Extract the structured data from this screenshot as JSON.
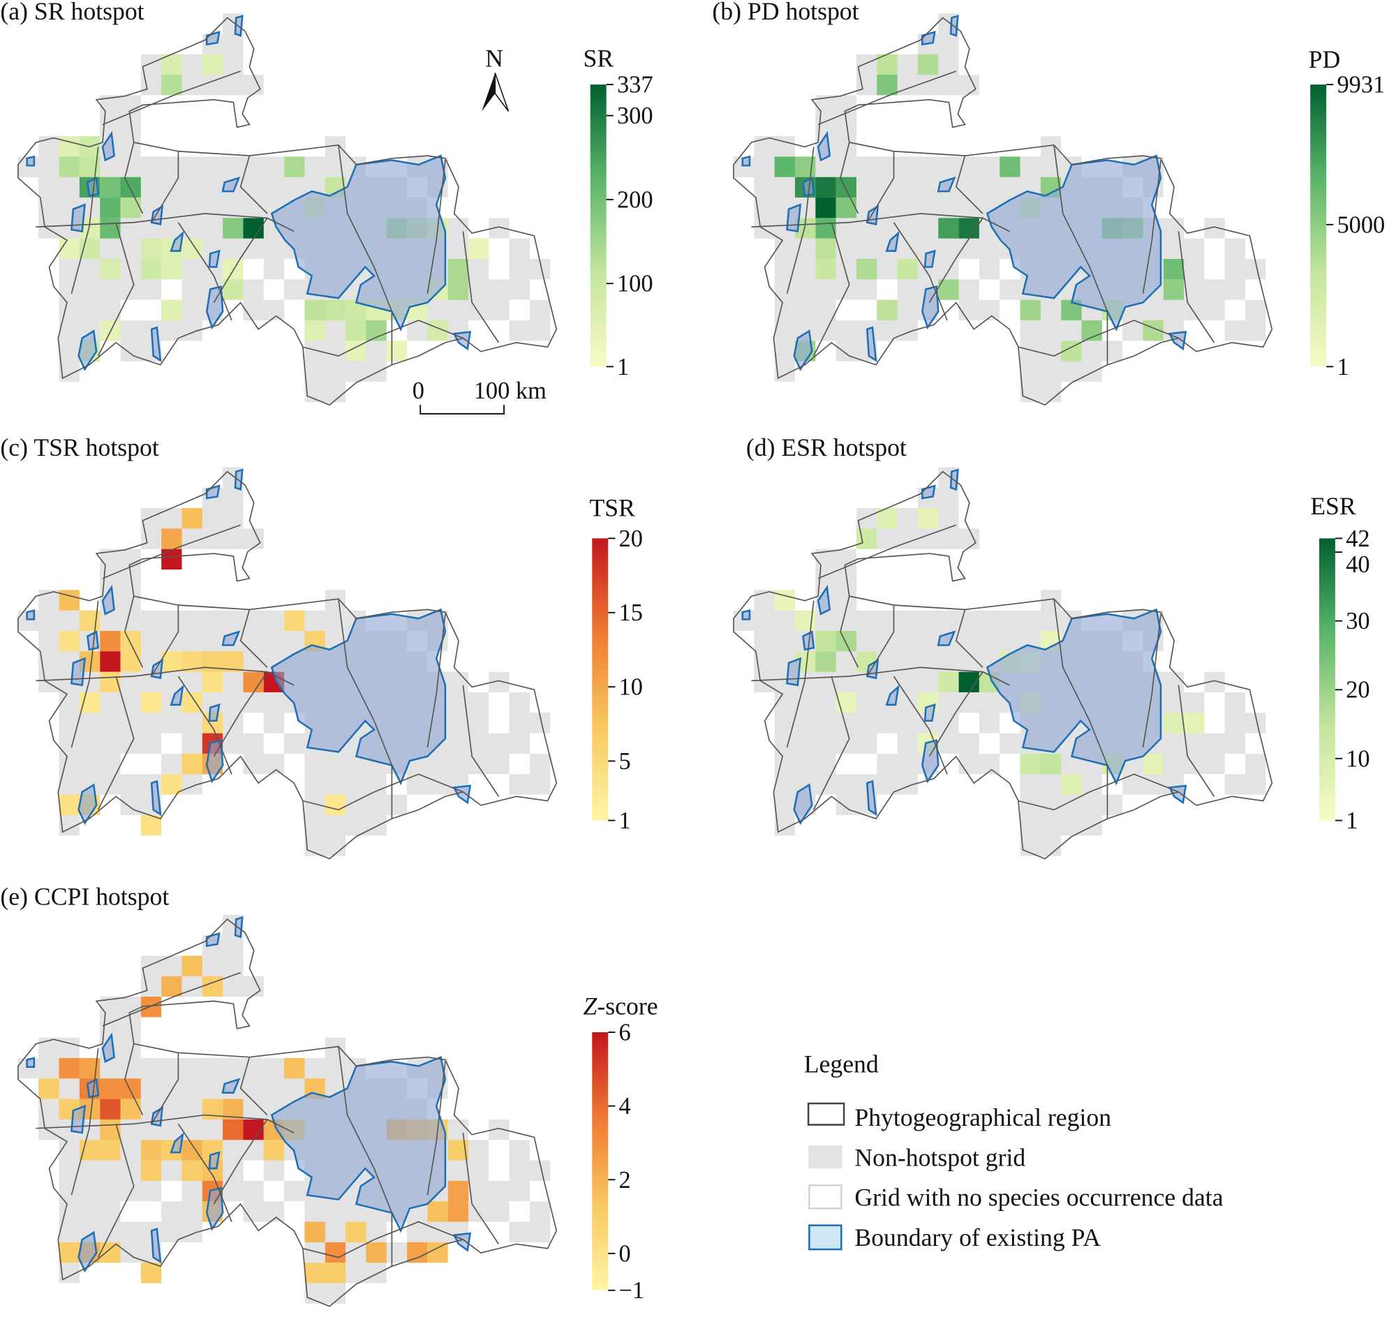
{
  "colors": {
    "nonhotspot": "#e3e3e3",
    "nodata": "#ffffff",
    "pa_fill": "#8fa6d4",
    "pa_stroke": "#1f6fb5",
    "region_stroke": "#555555",
    "green_ramp": [
      "#f7fbc6",
      "#c5e59e",
      "#5bb56a",
      "#00602f"
    ],
    "red_ramp": [
      "#fff5a5",
      "#f8c860",
      "#ef7a32",
      "#c3161e"
    ]
  },
  "panels": [
    {
      "id": "a",
      "title": "(a) SR hotspot",
      "cb_title": "SR",
      "ramp": "green",
      "range": [
        1,
        337
      ],
      "ticks": [
        "337",
        "300",
        "200",
        "100",
        "1"
      ],
      "cells": [
        [
          7,
          2,
          70
        ],
        [
          9,
          2,
          60
        ],
        [
          7,
          3,
          130
        ],
        [
          2,
          6,
          60
        ],
        [
          3,
          6,
          90
        ],
        [
          2,
          7,
          130
        ],
        [
          3,
          7,
          110
        ],
        [
          3,
          8,
          250
        ],
        [
          4,
          8,
          200
        ],
        [
          5,
          8,
          240
        ],
        [
          4,
          9,
          220
        ],
        [
          5,
          9,
          130
        ],
        [
          4,
          10,
          210
        ],
        [
          3,
          10,
          60
        ],
        [
          2,
          11,
          40
        ],
        [
          3,
          11,
          90
        ],
        [
          6,
          11,
          70
        ],
        [
          7,
          11,
          60
        ],
        [
          8,
          11,
          50
        ],
        [
          4,
          12,
          70
        ],
        [
          6,
          12,
          90
        ],
        [
          7,
          12,
          60
        ],
        [
          10,
          10,
          180
        ],
        [
          11,
          10,
          337
        ],
        [
          13,
          7,
          140
        ],
        [
          15,
          8,
          110
        ],
        [
          14,
          9,
          80
        ],
        [
          10,
          12,
          40
        ],
        [
          18,
          10,
          150
        ],
        [
          19,
          10,
          120
        ],
        [
          20,
          10,
          60
        ],
        [
          22,
          11,
          30
        ],
        [
          21,
          12,
          140
        ],
        [
          21,
          13,
          140
        ],
        [
          20,
          13,
          60
        ],
        [
          14,
          14,
          120
        ],
        [
          15,
          14,
          110
        ],
        [
          16,
          14,
          90
        ],
        [
          17,
          14,
          60
        ],
        [
          18,
          14,
          50
        ],
        [
          19,
          14,
          40
        ],
        [
          14,
          15,
          60
        ],
        [
          16,
          15,
          100
        ],
        [
          17,
          15,
          150
        ],
        [
          20,
          15,
          80
        ],
        [
          16,
          16,
          40
        ],
        [
          10,
          13,
          90
        ],
        [
          3,
          16,
          80
        ],
        [
          7,
          14,
          60
        ],
        [
          4,
          15,
          40
        ],
        [
          18,
          16,
          30
        ]
      ]
    },
    {
      "id": "b",
      "title": "(b) PD hotspot",
      "cb_title": "PD",
      "ramp": "green",
      "range": [
        1,
        9931
      ],
      "ticks": [
        "9931",
        "5000",
        "1"
      ],
      "cells": [
        [
          7,
          2,
          3500
        ],
        [
          9,
          2,
          4000
        ],
        [
          7,
          3,
          5500
        ],
        [
          2,
          7,
          6500
        ],
        [
          3,
          7,
          5000
        ],
        [
          3,
          8,
          8000
        ],
        [
          4,
          8,
          9000
        ],
        [
          5,
          8,
          7500
        ],
        [
          4,
          9,
          9931
        ],
        [
          5,
          9,
          5500
        ],
        [
          4,
          10,
          6500
        ],
        [
          3,
          10,
          3500
        ],
        [
          10,
          10,
          7500
        ],
        [
          11,
          10,
          9000
        ],
        [
          13,
          7,
          6000
        ],
        [
          15,
          8,
          5000
        ],
        [
          14,
          9,
          3000
        ],
        [
          4,
          11,
          3500
        ],
        [
          4,
          12,
          3000
        ],
        [
          6,
          12,
          4000
        ],
        [
          8,
          12,
          3000
        ],
        [
          18,
          10,
          5500
        ],
        [
          19,
          10,
          5000
        ],
        [
          21,
          12,
          6000
        ],
        [
          21,
          13,
          5000
        ],
        [
          14,
          14,
          4500
        ],
        [
          16,
          14,
          5500
        ],
        [
          17,
          15,
          5000
        ],
        [
          20,
          15,
          4000
        ],
        [
          16,
          16,
          3500
        ],
        [
          10,
          13,
          4500
        ],
        [
          3,
          16,
          4500
        ],
        [
          7,
          14,
          3500
        ],
        [
          18,
          14,
          3000
        ]
      ]
    },
    {
      "id": "c",
      "title": "(c) TSR hotspot",
      "cb_title": "TSR",
      "ramp": "red",
      "range": [
        1,
        20
      ],
      "ticks": [
        "20",
        "15",
        "10",
        "5",
        "1"
      ],
      "cells": [
        [
          8,
          2,
          8
        ],
        [
          7,
          3,
          10
        ],
        [
          7,
          4,
          20
        ],
        [
          2,
          6,
          8
        ],
        [
          3,
          7,
          5
        ],
        [
          2,
          8,
          4
        ],
        [
          4,
          8,
          12
        ],
        [
          5,
          8,
          5
        ],
        [
          4,
          9,
          20
        ],
        [
          3,
          9,
          8
        ],
        [
          5,
          9,
          5
        ],
        [
          7,
          9,
          4
        ],
        [
          8,
          9,
          5
        ],
        [
          9,
          9,
          6
        ],
        [
          10,
          9,
          6
        ],
        [
          11,
          10,
          12
        ],
        [
          12,
          10,
          20
        ],
        [
          9,
          10,
          4
        ],
        [
          3,
          11,
          3
        ],
        [
          6,
          11,
          3
        ],
        [
          8,
          11,
          4
        ],
        [
          9,
          12,
          5
        ],
        [
          9,
          13,
          18
        ],
        [
          9,
          14,
          10
        ],
        [
          8,
          14,
          6
        ],
        [
          7,
          15,
          4
        ],
        [
          2,
          16,
          4
        ],
        [
          3,
          16,
          5
        ],
        [
          6,
          17,
          4
        ],
        [
          14,
          8,
          6
        ],
        [
          13,
          7,
          5
        ],
        [
          15,
          16,
          3
        ],
        [
          4,
          10,
          5
        ]
      ]
    },
    {
      "id": "d",
      "title": "(d) ESR hotspot",
      "cb_title": "ESR",
      "ramp": "green",
      "range": [
        1,
        42
      ],
      "ticks": [
        "42",
        "40",
        "30",
        "20",
        "10",
        "1"
      ],
      "cells": [
        [
          7,
          2,
          8
        ],
        [
          9,
          2,
          6
        ],
        [
          6,
          3,
          12
        ],
        [
          2,
          6,
          5
        ],
        [
          3,
          7,
          6
        ],
        [
          4,
          8,
          15
        ],
        [
          5,
          8,
          18
        ],
        [
          3,
          9,
          10
        ],
        [
          4,
          9,
          18
        ],
        [
          6,
          9,
          12
        ],
        [
          10,
          10,
          12
        ],
        [
          11,
          10,
          42
        ],
        [
          12,
          10,
          15
        ],
        [
          13,
          9,
          8
        ],
        [
          14,
          9,
          5
        ],
        [
          9,
          11,
          6
        ],
        [
          5,
          11,
          5
        ],
        [
          14,
          11,
          6
        ],
        [
          21,
          12,
          8
        ],
        [
          22,
          12,
          6
        ],
        [
          15,
          14,
          15
        ],
        [
          14,
          14,
          12
        ],
        [
          18,
          14,
          10
        ],
        [
          16,
          15,
          8
        ],
        [
          20,
          14,
          6
        ],
        [
          9,
          13,
          5
        ],
        [
          15,
          8,
          5
        ]
      ]
    },
    {
      "id": "e",
      "title": "(e) CCPI hotspot",
      "cb_title_italic": "Z",
      "cb_title": "-score",
      "ramp": "red",
      "range": [
        -1,
        6
      ],
      "ticks": [
        "6",
        "4",
        "2",
        "0",
        "−1"
      ],
      "cells": [
        [
          8,
          2,
          1.5
        ],
        [
          7,
          3,
          2
        ],
        [
          6,
          4,
          3
        ],
        [
          9,
          3,
          1
        ],
        [
          2,
          7,
          3
        ],
        [
          3,
          7,
          2.5
        ],
        [
          1,
          8,
          1
        ],
        [
          3,
          8,
          3.5
        ],
        [
          4,
          8,
          3
        ],
        [
          5,
          8,
          3
        ],
        [
          4,
          9,
          4.5
        ],
        [
          2,
          9,
          1
        ],
        [
          3,
          9,
          2
        ],
        [
          5,
          9,
          1.5
        ],
        [
          4,
          10,
          1.5
        ],
        [
          3,
          11,
          1
        ],
        [
          4,
          11,
          1
        ],
        [
          6,
          11,
          1.5
        ],
        [
          7,
          11,
          1
        ],
        [
          8,
          11,
          2
        ],
        [
          9,
          11,
          1
        ],
        [
          6,
          12,
          1
        ],
        [
          8,
          12,
          1
        ],
        [
          9,
          13,
          3.5
        ],
        [
          9,
          12,
          1.5
        ],
        [
          9,
          14,
          1.5
        ],
        [
          2,
          16,
          1
        ],
        [
          3,
          16,
          2
        ],
        [
          4,
          16,
          1
        ],
        [
          6,
          17,
          1
        ],
        [
          10,
          10,
          4
        ],
        [
          11,
          10,
          6
        ],
        [
          12,
          10,
          2
        ],
        [
          10,
          9,
          2
        ],
        [
          9,
          9,
          1
        ],
        [
          13,
          7,
          1.5
        ],
        [
          14,
          8,
          1.5
        ],
        [
          13,
          10,
          1
        ],
        [
          12,
          11,
          1
        ],
        [
          18,
          10,
          2
        ],
        [
          19,
          10,
          1.5
        ],
        [
          20,
          10,
          1
        ],
        [
          21,
          13,
          2.5
        ],
        [
          21,
          14,
          2.5
        ],
        [
          20,
          14,
          1.5
        ],
        [
          15,
          16,
          3
        ],
        [
          14,
          15,
          2
        ],
        [
          17,
          16,
          2
        ],
        [
          19,
          16,
          2.5
        ],
        [
          15,
          17,
          1
        ],
        [
          16,
          15,
          1
        ],
        [
          20,
          16,
          1.5
        ],
        [
          21,
          11,
          1
        ],
        [
          14,
          17,
          1
        ]
      ]
    }
  ],
  "north_arrow": {
    "label": "N"
  },
  "scale_bar": {
    "zero": "0",
    "end": "100 km"
  },
  "legend": {
    "title": "Legend",
    "items": [
      {
        "label": "Phytogeographical region",
        "swatch": "outline"
      },
      {
        "label": "Non-hotspot grid",
        "swatch": "gray"
      },
      {
        "label": "Grid with no species occurrence data",
        "swatch": "white"
      },
      {
        "label": "Boundary of existing PA",
        "swatch": "pa"
      }
    ]
  }
}
